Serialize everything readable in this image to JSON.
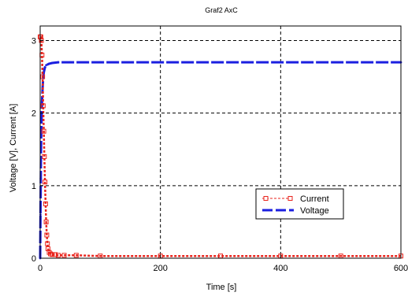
{
  "chart_data": {
    "type": "line",
    "title": "Graf2 AxC",
    "xlabel": "Time [s]",
    "ylabel": "Voltage  [V], Current [A]",
    "xlim": [
      0,
      600
    ],
    "ylim": [
      0,
      3.2
    ],
    "xticks": [
      0,
      200,
      400,
      600
    ],
    "yticks": [
      0,
      1,
      2,
      3
    ],
    "xtick_labels": [
      "0",
      "200",
      "400",
      "600"
    ],
    "ytick_labels": [
      "0",
      "1",
      "2",
      "3"
    ],
    "grid": true,
    "legend_position": "lower-right",
    "series": [
      {
        "name": "Current",
        "color": "#e8231c",
        "style": "dashed-square-markers",
        "x": [
          0,
          1,
          2,
          3,
          4,
          5,
          6,
          7,
          8,
          9,
          10,
          11,
          12,
          13,
          15,
          17,
          20,
          25,
          30,
          40,
          60,
          100,
          200,
          300,
          400,
          500,
          600
        ],
        "y": [
          3.05,
          3.05,
          3.0,
          2.8,
          2.5,
          2.1,
          1.75,
          1.4,
          1.05,
          0.75,
          0.5,
          0.32,
          0.2,
          0.13,
          0.08,
          0.06,
          0.05,
          0.05,
          0.04,
          0.04,
          0.04,
          0.03,
          0.03,
          0.03,
          0.03,
          0.03,
          0.03
        ]
      },
      {
        "name": "Voltage",
        "color": "#1b1fe0",
        "style": "dashed-thick",
        "x": [
          0,
          0.5,
          1,
          1.5,
          2,
          3,
          4,
          5,
          6,
          8,
          10,
          15,
          20,
          30,
          50,
          100,
          200,
          300,
          400,
          500,
          600
        ],
        "y": [
          0,
          0.6,
          1.1,
          1.5,
          1.8,
          2.15,
          2.35,
          2.48,
          2.56,
          2.63,
          2.66,
          2.68,
          2.69,
          2.7,
          2.7,
          2.7,
          2.7,
          2.7,
          2.7,
          2.7,
          2.7
        ]
      }
    ]
  }
}
